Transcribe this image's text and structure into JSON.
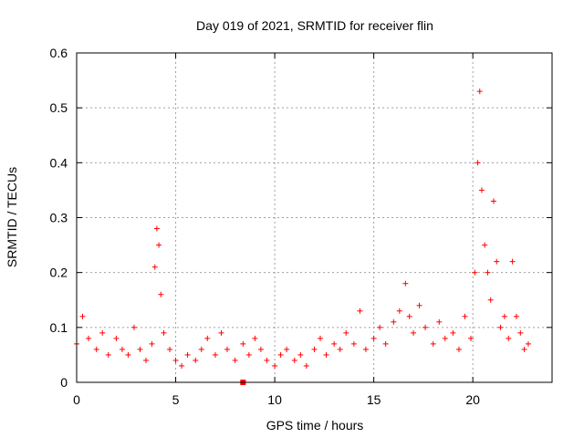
{
  "chart_data": {
    "type": "scatter",
    "title": "Day 019 of 2021, SRMTID for receiver flin",
    "xlabel": "GPS time / hours",
    "ylabel": "SRMTID / TECUs",
    "xlim": [
      0,
      24
    ],
    "ylim": [
      0,
      0.6
    ],
    "xticks": [
      0,
      5,
      10,
      15,
      20
    ],
    "yticks": [
      0,
      0.1,
      0.2,
      0.3,
      0.4,
      0.5,
      0.6
    ],
    "grid": true,
    "marker": "+",
    "color": "#ff0000",
    "series": [
      {
        "name": "SRMTID",
        "x": [
          0.0,
          0.3,
          0.6,
          1.0,
          1.3,
          1.6,
          2.0,
          2.3,
          2.6,
          2.9,
          3.2,
          3.5,
          3.8,
          3.95,
          4.05,
          4.15,
          4.25,
          4.4,
          4.7,
          5.0,
          5.3,
          5.6,
          6.0,
          6.3,
          6.6,
          7.0,
          7.3,
          7.6,
          8.0,
          8.4,
          8.7,
          9.0,
          9.3,
          9.6,
          10.0,
          10.3,
          10.6,
          11.0,
          11.3,
          11.6,
          12.0,
          12.3,
          12.6,
          13.0,
          13.3,
          13.6,
          14.0,
          14.3,
          14.6,
          15.0,
          15.3,
          15.6,
          16.0,
          16.3,
          16.6,
          16.8,
          17.0,
          17.3,
          17.6,
          18.0,
          18.3,
          18.6,
          19.0,
          19.3,
          19.6,
          19.9,
          20.1,
          20.25,
          20.35,
          20.45,
          20.6,
          20.75,
          20.9,
          21.05,
          21.2,
          21.4,
          21.6,
          21.8,
          22.0,
          22.2,
          22.4,
          22.6,
          22.8
        ],
        "y": [
          0.07,
          0.12,
          0.08,
          0.06,
          0.09,
          0.05,
          0.08,
          0.06,
          0.05,
          0.1,
          0.06,
          0.04,
          0.07,
          0.21,
          0.28,
          0.25,
          0.16,
          0.09,
          0.06,
          0.04,
          0.03,
          0.05,
          0.04,
          0.06,
          0.08,
          0.05,
          0.09,
          0.06,
          0.04,
          0.07,
          0.05,
          0.08,
          0.06,
          0.04,
          0.03,
          0.05,
          0.06,
          0.04,
          0.05,
          0.03,
          0.06,
          0.08,
          0.05,
          0.07,
          0.06,
          0.09,
          0.07,
          0.13,
          0.06,
          0.08,
          0.1,
          0.07,
          0.11,
          0.13,
          0.18,
          0.12,
          0.09,
          0.14,
          0.1,
          0.07,
          0.11,
          0.08,
          0.09,
          0.06,
          0.12,
          0.08,
          0.2,
          0.4,
          0.53,
          0.35,
          0.25,
          0.2,
          0.15,
          0.33,
          0.22,
          0.1,
          0.12,
          0.08,
          0.22,
          0.12,
          0.09,
          0.06,
          0.07
        ]
      }
    ],
    "special_markers": [
      {
        "name": "square",
        "x": 8.4,
        "y": 0.0
      }
    ]
  }
}
